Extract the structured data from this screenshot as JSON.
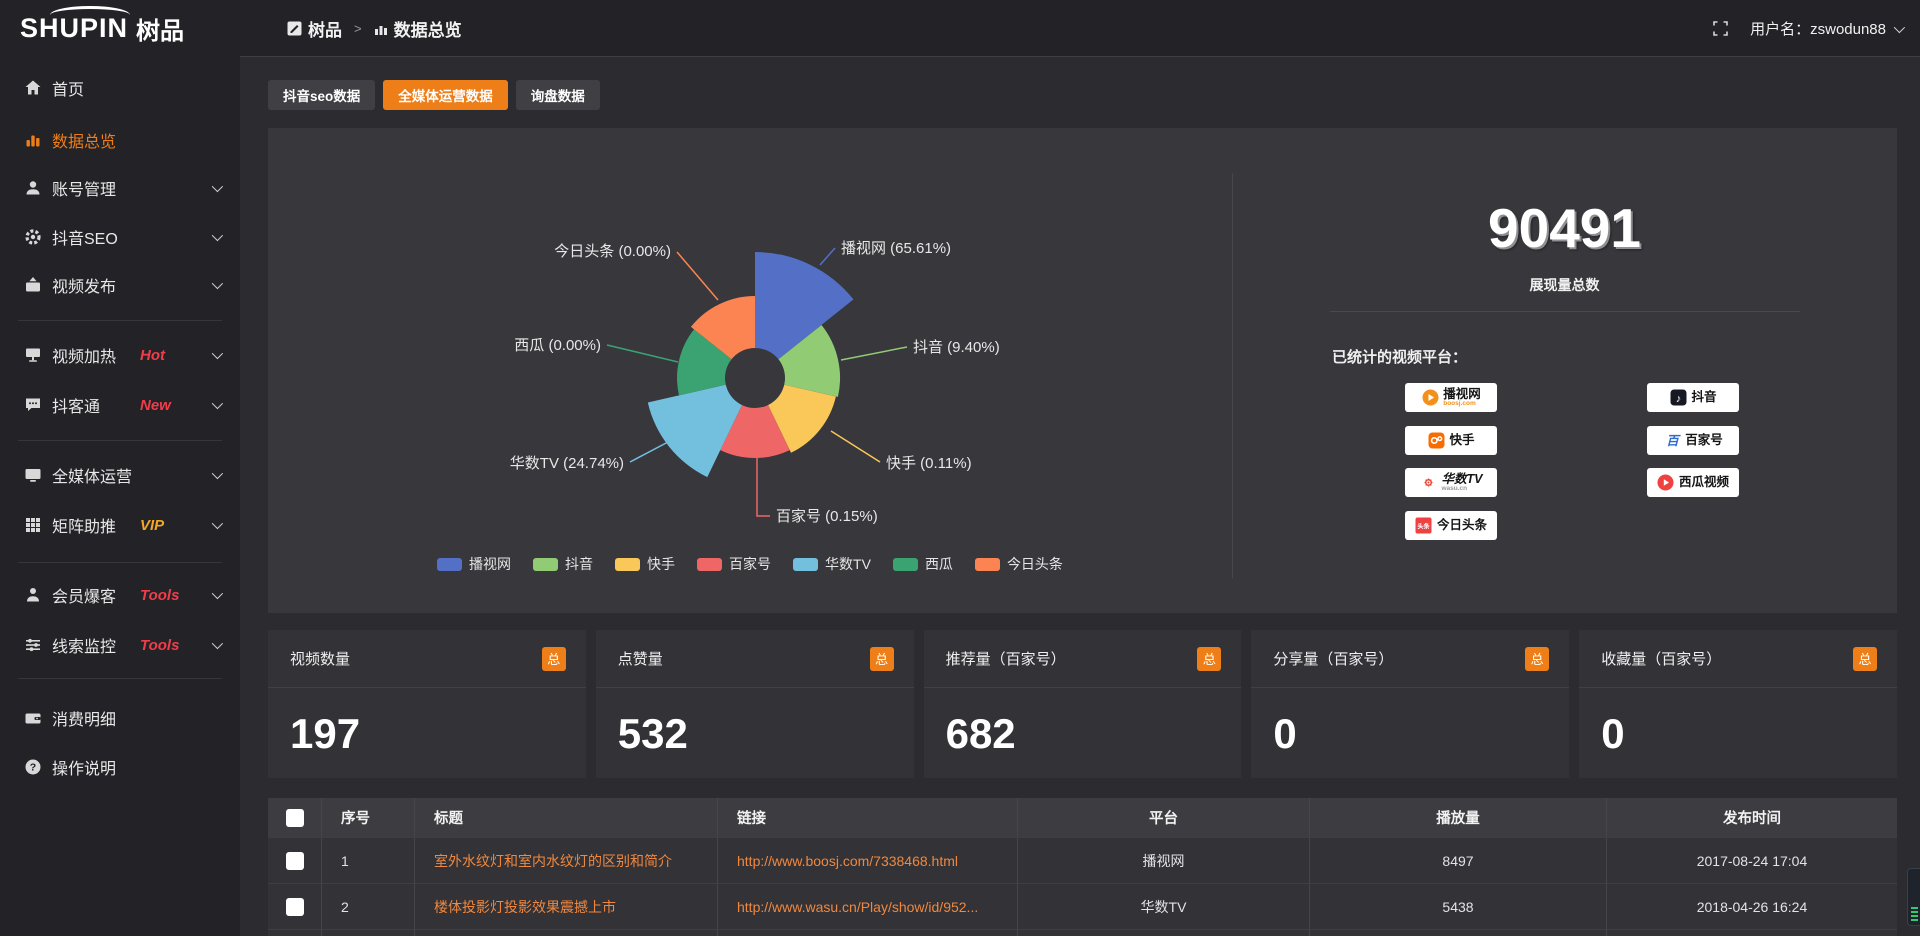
{
  "theme": {
    "accent": "#ee7e17",
    "hot": "#f23d49",
    "vip": "#f5a623",
    "link": "#f0883f"
  },
  "header": {
    "logo_primary": "SHUPIN",
    "logo_secondary": "树品",
    "breadcrumb": {
      "root": "树品",
      "separator": ">",
      "current": "数据总览"
    },
    "user": {
      "label": "用户名：",
      "name": "zswodun88"
    }
  },
  "sidebar": {
    "items": [
      {
        "label": "首页"
      },
      {
        "label": "数据总览",
        "active": true
      },
      {
        "label": "账号管理"
      },
      {
        "label": "抖音SEO"
      },
      {
        "label": "视频发布"
      },
      {
        "label": "视频加热",
        "tag": "Hot"
      },
      {
        "label": "抖客通",
        "tag": "New"
      },
      {
        "label": "全媒体运营"
      },
      {
        "label": "矩阵助推",
        "tag": "VIP"
      },
      {
        "label": "会员爆客",
        "tag": "Tools"
      },
      {
        "label": "线索监控",
        "tag": "Tools"
      },
      {
        "label": "消费明细"
      },
      {
        "label": "操作说明"
      }
    ]
  },
  "tabs": [
    {
      "label": "抖音seo数据",
      "active": false
    },
    {
      "label": "全媒体运营数据",
      "active": true
    },
    {
      "label": "询盘数据",
      "active": false
    }
  ],
  "chart_data": {
    "type": "pie",
    "subtype": "nightingale-rose",
    "unit": "%",
    "legend_position": "bottom",
    "series": [
      {
        "name": "播视网",
        "value": 65.61,
        "color": "#5470c6"
      },
      {
        "name": "抖音",
        "value": 9.4,
        "color": "#91cc75"
      },
      {
        "name": "快手",
        "value": 0.11,
        "color": "#fac858"
      },
      {
        "name": "百家号",
        "value": 0.15,
        "color": "#ee6666"
      },
      {
        "name": "华数TV",
        "value": 24.74,
        "color": "#73c0de"
      },
      {
        "name": "西瓜",
        "value": 0.0,
        "color": "#3ba272"
      },
      {
        "name": "今日头条",
        "value": 0.0,
        "color": "#fc8452"
      }
    ],
    "display_radii": [
      126,
      85,
      83,
      80,
      110,
      78,
      82
    ],
    "inner_radius": 30
  },
  "overview": {
    "total_value": "90491",
    "total_label": "展现量总数",
    "platforms_title": "已统计的视频平台：",
    "platforms_left": [
      {
        "name": "播视网",
        "sub": "boosj.com"
      },
      {
        "name": "快手",
        "sub": ""
      },
      {
        "name": "华数TV",
        "sub": "wasu.cn"
      },
      {
        "name": "今日头条",
        "sub": "",
        "icon_text": "头条"
      }
    ],
    "platforms_right": [
      {
        "name": "抖音",
        "icon_text": "♪"
      },
      {
        "name": "百家号",
        "icon_text": "百"
      },
      {
        "name": "西瓜视频",
        "sub": ""
      }
    ]
  },
  "stat_cards": [
    {
      "label": "视频数量",
      "badge": "总",
      "value": "197"
    },
    {
      "label": "点赞量",
      "badge": "总",
      "value": "532"
    },
    {
      "label": "推荐量（百家号）",
      "badge": "总",
      "value": "682"
    },
    {
      "label": "分享量（百家号）",
      "badge": "总",
      "value": "0"
    },
    {
      "label": "收藏量（百家号）",
      "badge": "总",
      "value": "0"
    }
  ],
  "table": {
    "columns": [
      "序号",
      "标题",
      "链接",
      "平台",
      "播放量",
      "发布时间"
    ],
    "rows": [
      {
        "index": "1",
        "title": "室外水纹灯和室内水纹灯的区别和简介",
        "link": "http://www.boosj.com/7338468.html",
        "platform": "播视网",
        "plays": "8497",
        "published": "2017-08-24 17:04"
      },
      {
        "index": "2",
        "title": "楼体投影灯投影效果震撼上市",
        "link": "http://www.wasu.cn/Play/show/id/952...",
        "platform": "华数TV",
        "plays": "5438",
        "published": "2018-04-26 16:24"
      }
    ]
  }
}
